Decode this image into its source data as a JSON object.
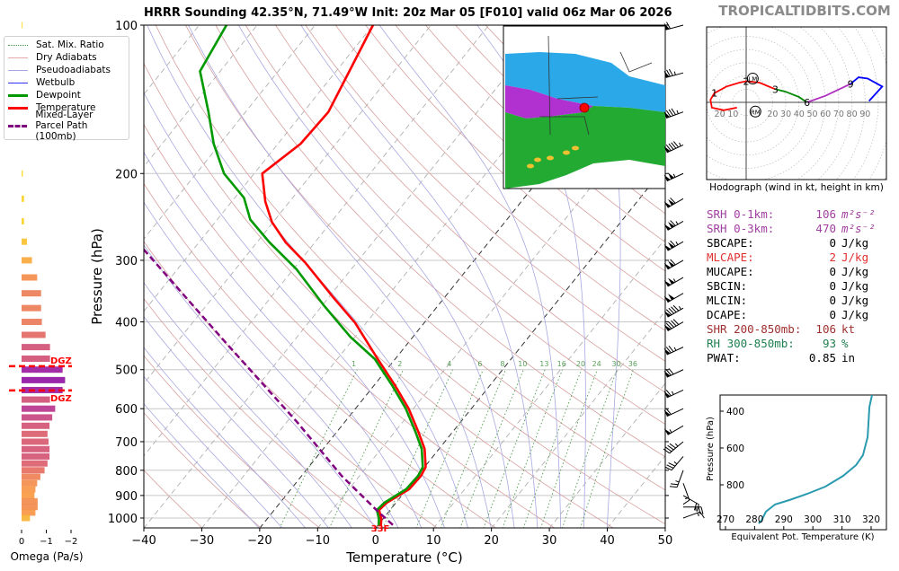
{
  "header": {
    "title": "HRRR Sounding 42.35°N, 71.49°W Init: 20z Mar 05 [F010] valid 06z Mar 06 2026",
    "brand": "TROPICALTIDBITS.COM"
  },
  "legend": {
    "items": [
      {
        "label": "Sat. Mix. Ratio",
        "color": "#4a9a4a",
        "style": "dotted"
      },
      {
        "label": "Dry Adiabats",
        "color": "#d8a0a0",
        "style": "solid"
      },
      {
        "label": "Pseudoadiabats",
        "color": "#a8a8e0",
        "style": "solid"
      },
      {
        "label": "Wetbulb",
        "color": "#3030ff",
        "style": "solid"
      },
      {
        "label": "Dewpoint",
        "color": "#009900",
        "style": "thick"
      },
      {
        "label": "Temperature",
        "color": "#ff0000",
        "style": "thick"
      },
      {
        "label": "Mixed-Layer",
        "label2": "Parcel Path (100mb)",
        "color": "#800080",
        "style": "dashed"
      }
    ]
  },
  "params": {
    "rows": [
      {
        "label": "SRH 0-1km:",
        "value": "106",
        "unit": "m²s⁻²",
        "color": "#a040a0",
        "italic": true
      },
      {
        "label": "SRH 0-3km:",
        "value": "470",
        "unit": "m²s⁻²",
        "color": "#a040a0",
        "italic": true
      },
      {
        "label": "SBCAPE:",
        "value": "0",
        "unit": "J/kg",
        "color": "#000000"
      },
      {
        "label": "MLCAPE:",
        "value": "2",
        "unit": "J/kg",
        "color": "#e03030"
      },
      {
        "label": "MUCAPE:",
        "value": "0",
        "unit": "J/kg",
        "color": "#000000"
      },
      {
        "label": "SBCIN:",
        "value": "0",
        "unit": "J/kg",
        "color": "#000000"
      },
      {
        "label": "MLCIN:",
        "value": "0",
        "unit": "J/kg",
        "color": "#000000"
      },
      {
        "label": "DCAPE:",
        "value": "0",
        "unit": "J/kg",
        "color": "#000000"
      },
      {
        "label": "SHR 200-850mb:",
        "value": "106",
        "unit": "kt",
        "color": "#a03030"
      },
      {
        "label": "RH 300-850mb:",
        "value": "93",
        "unit": "%",
        "color": "#208050"
      },
      {
        "label": "PWAT:",
        "value": "0.85",
        "unit": "in",
        "color": "#000000"
      }
    ]
  },
  "chart_data": [
    {
      "type": "line",
      "name": "skew-t",
      "xlabel": "Temperature (°C)",
      "ylabel": "Pressure (hPa)",
      "xlim": [
        -40,
        50
      ],
      "ylim": [
        1050,
        100
      ],
      "xticks": [
        -40,
        -30,
        -20,
        -10,
        0,
        10,
        20,
        30,
        40,
        50
      ],
      "yticks": [
        100,
        200,
        300,
        400,
        500,
        600,
        700,
        800,
        900,
        1000
      ],
      "surface_label": "33F",
      "mixing_ratio_labels": [
        "1",
        "2",
        "4",
        "6",
        "8",
        "10",
        "13",
        "16",
        "20",
        "24",
        "30",
        "36"
      ],
      "highlight_isotherms": [
        0,
        -20
      ],
      "series": [
        {
          "name": "Temperature",
          "color": "#ff0000",
          "p": [
            100,
            150,
            174,
            200,
            228,
            251,
            276,
            303,
            355,
            402,
            476,
            540,
            600,
            666,
            724,
            788,
            821,
            874,
            931,
            963,
            1004,
            1037
          ],
          "t": [
            -70.0,
            -65.7,
            -66.1,
            -68.6,
            -64.2,
            -60.2,
            -55.0,
            -48.9,
            -39.5,
            -31.9,
            -23.0,
            -16.2,
            -10.8,
            -6.1,
            -2.5,
            0.2,
            0.6,
            0.4,
            -1.6,
            -1.9,
            -0.3,
            0.6
          ]
        },
        {
          "name": "Dewpoint",
          "color": "#009900",
          "p": [
            100,
            124,
            150,
            174,
            200,
            224,
            248,
            276,
            313,
            370,
            429,
            476,
            540,
            600,
            666,
            724,
            788,
            821,
            874,
            931,
            963,
            1004,
            1037
          ],
          "t": [
            -95.3,
            -93.5,
            -86.4,
            -81.1,
            -75.2,
            -68.4,
            -64.3,
            -57.8,
            -49.4,
            -39.8,
            -30.8,
            -23.5,
            -16.7,
            -11.3,
            -6.6,
            -3.0,
            -0.3,
            0.1,
            -0.1,
            -2.0,
            -2.3,
            -0.7,
            0.2
          ]
        },
        {
          "name": "Mixed-Layer Parcel Path (100mb)",
          "color": "#800080",
          "p": [
            285,
            438,
            638,
            821,
            970,
            1035
          ],
          "t": [
            -78.6,
            -51.9,
            -28.3,
            -13.1,
            -1.9,
            2.7
          ]
        }
      ],
      "winds": [
        {
          "p": 100,
          "spd": 60,
          "dir": 255
        },
        {
          "p": 125,
          "spd": 75,
          "dir": 255
        },
        {
          "p": 150,
          "spd": 85,
          "dir": 250
        },
        {
          "p": 175,
          "spd": 95,
          "dir": 245
        },
        {
          "p": 200,
          "spd": 105,
          "dir": 245
        },
        {
          "p": 225,
          "spd": 110,
          "dir": 240
        },
        {
          "p": 250,
          "spd": 115,
          "dir": 240
        },
        {
          "p": 275,
          "spd": 115,
          "dir": 240
        },
        {
          "p": 300,
          "spd": 110,
          "dir": 240
        },
        {
          "p": 325,
          "spd": 105,
          "dir": 240
        },
        {
          "p": 350,
          "spd": 100,
          "dir": 240
        },
        {
          "p": 375,
          "spd": 95,
          "dir": 240
        },
        {
          "p": 400,
          "spd": 90,
          "dir": 240
        },
        {
          "p": 450,
          "spd": 75,
          "dir": 245
        },
        {
          "p": 500,
          "spd": 70,
          "dir": 245
        },
        {
          "p": 550,
          "spd": 65,
          "dir": 245
        },
        {
          "p": 600,
          "spd": 60,
          "dir": 245
        },
        {
          "p": 650,
          "spd": 55,
          "dir": 240
        },
        {
          "p": 700,
          "spd": 45,
          "dir": 230
        },
        {
          "p": 750,
          "spd": 35,
          "dir": 220
        },
        {
          "p": 800,
          "spd": 25,
          "dir": 200
        },
        {
          "p": 850,
          "spd": 15,
          "dir": 160
        },
        {
          "p": 900,
          "spd": 20,
          "dir": 120
        },
        {
          "p": 950,
          "spd": 25,
          "dir": 90
        },
        {
          "p": 1000,
          "spd": 15,
          "dir": 70
        }
      ]
    },
    {
      "type": "bar",
      "name": "omega",
      "xlabel": "Omega (Pa/s)",
      "xticks": [
        0,
        -1,
        -2
      ],
      "xtick_labels": [
        "0",
        "−1",
        "−2"
      ],
      "dgz_label": "DGZ",
      "dgz_pressures": [
        492,
        551
      ],
      "p": [
        100,
        200,
        225,
        250,
        275,
        300,
        325,
        350,
        375,
        400,
        425,
        450,
        475,
        500,
        525,
        550,
        575,
        600,
        625,
        650,
        675,
        700,
        725,
        750,
        775,
        800,
        825,
        850,
        875,
        900,
        925,
        950,
        975,
        1000
      ],
      "values": [
        -0.02,
        -0.05,
        -0.1,
        -0.1,
        -0.22,
        -0.42,
        -0.63,
        -0.79,
        -0.79,
        -0.82,
        -0.97,
        -1.15,
        -1.15,
        -1.66,
        -1.76,
        -1.66,
        -1.15,
        -1.36,
        -1.24,
        -1.13,
        -1.05,
        -1.09,
        -1.13,
        -1.13,
        -1.05,
        -0.93,
        -0.76,
        -0.63,
        -0.56,
        -0.52,
        -0.65,
        -0.65,
        -0.56,
        -0.34
      ]
    },
    {
      "type": "line",
      "name": "hodograph",
      "caption": "Hodograph (wind in kt, height in km)",
      "ring_labels_left": [
        "20",
        "10"
      ],
      "ring_labels_right": [
        "20",
        "30",
        "40",
        "50",
        "60",
        "70",
        "80",
        "90"
      ],
      "height_labels": [
        {
          "km": "1",
          "u": -24,
          "v": 7
        },
        {
          "km": "2",
          "u": 0,
          "v": 16
        },
        {
          "km": "3",
          "u": 22,
          "v": 10
        },
        {
          "km": "6",
          "u": 46,
          "v": 0
        },
        {
          "km": "9",
          "u": 79,
          "v": 14
        }
      ],
      "storm_motion": [
        {
          "label": "LM",
          "u": 5,
          "v": 18
        },
        {
          "label": "RM",
          "u": 7,
          "v": -7
        }
      ],
      "segments": [
        {
          "color": "#ff0000",
          "u": [
            -7,
            -17,
            -26,
            -27,
            -24,
            -15,
            -5,
            0,
            10,
            22
          ],
          "v": [
            -4,
            -6,
            -4,
            2,
            7,
            12,
            15,
            16,
            15,
            10
          ]
        },
        {
          "color": "#008800",
          "u": [
            22,
            30,
            40,
            46
          ],
          "v": [
            10,
            8,
            4,
            0
          ]
        },
        {
          "color": "#b030c0",
          "u": [
            46,
            60,
            79
          ],
          "v": [
            0,
            5,
            14
          ]
        },
        {
          "color": "#0000ff",
          "u": [
            79,
            85,
            92,
            103,
            93
          ],
          "v": [
            14,
            19,
            18,
            12,
            1
          ]
        }
      ]
    },
    {
      "type": "line",
      "name": "theta-e",
      "xlabel": "Equivalent Pot. Temperature (K)",
      "ylabel": "Pressure (hPa)",
      "xticks": [
        270,
        280,
        290,
        300,
        310,
        320
      ],
      "yticks": [
        400,
        600,
        800
      ],
      "color": "#2a9ab0",
      "theta": [
        320.3,
        319.4,
        318.8,
        317.2,
        314.8,
        310.4,
        304.3,
        298.1,
        291.9,
        287.0,
        283.9,
        282.3,
        281.4
      ],
      "p": [
        312,
        376,
        541,
        639,
        693,
        751,
        810,
        849,
        883,
        907,
        946,
        995,
        1010
      ]
    }
  ]
}
